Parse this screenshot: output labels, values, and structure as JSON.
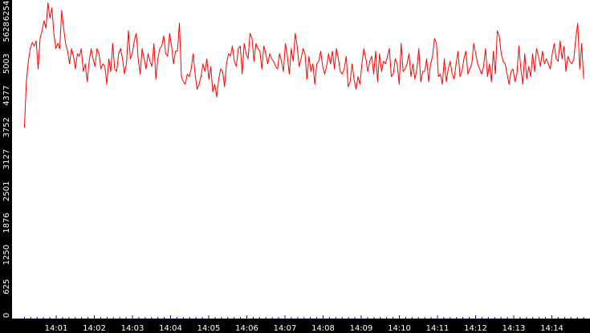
{
  "colors": {
    "background": "#ffffff",
    "axis_band": "#000000",
    "tick_label": "#ffffff",
    "series_line": "#ff0000",
    "minor_tick": "#0000cc"
  },
  "chart_data": {
    "type": "line",
    "title": "",
    "xlabel": "",
    "ylabel": "",
    "grid": false,
    "legend": "none",
    "ylim": [
      0,
      6254
    ],
    "xlim": [
      "14:00:10",
      "14:14:50"
    ],
    "y_ticks": [
      "0",
      "625",
      "1250",
      "1876",
      "2501",
      "3127",
      "3752",
      "4377",
      "5003",
      "5628",
      "6254"
    ],
    "x_ticks": [
      "14:01",
      "14:02",
      "14:03",
      "14:04",
      "14:05",
      "14:06",
      "14:07",
      "14:08",
      "14:09",
      "14:10",
      "14:11",
      "14:12",
      "14:13",
      "14:14"
    ],
    "series": [
      {
        "x_start": "14:00:10",
        "x_end": "14:14:50",
        "values": [
          3750,
          4650,
          5050,
          5300,
          5420,
          5350,
          5450,
          4900,
          5500,
          5650,
          5850,
          5700,
          6200,
          5900,
          6100,
          5600,
          5300,
          5400,
          5300,
          6050,
          5700,
          5400,
          5250,
          5000,
          5300,
          5150,
          4900,
          5200,
          5150,
          5300,
          4850,
          5000,
          4650,
          5050,
          5300,
          5100,
          4950,
          5300,
          5200,
          4900,
          5000,
          4950,
          4600,
          5100,
          4850,
          5400,
          4900,
          4850,
          5200,
          5300,
          5100,
          4800,
          5000,
          5650,
          5100,
          5200,
          5450,
          5600,
          5100,
          4800,
          5300,
          5100,
          4900,
          5200,
          5050,
          4950,
          5400,
          4700,
          5100,
          5300,
          5350,
          5550,
          5200,
          5150,
          5600,
          5350,
          5000,
          5250,
          5250,
          5800,
          4750,
          4650,
          4600,
          4800,
          4750,
          4900,
          5200,
          4800,
          4500,
          4600,
          4750,
          5000,
          4850,
          5100,
          4700,
          4950,
          4450,
          4600,
          4350,
          4700,
          4900,
          4850,
          4550,
          5000,
          5200,
          5150,
          5350,
          5050,
          4950,
          5300,
          5350,
          4800,
          5400,
          5200,
          5100,
          5600,
          5500,
          5050,
          5400,
          5300,
          5250,
          4900,
          5350,
          5200,
          5000,
          5200,
          5100,
          5050,
          4950,
          4900,
          5200,
          5050,
          4850,
          5400,
          5150,
          4800,
          5300,
          5050,
          5600,
          5350,
          4950,
          5100,
          5300,
          5200,
          4700,
          5150,
          4850,
          5000,
          4600,
          5000,
          5050,
          5250,
          4950,
          4800,
          4950,
          5200,
          5000,
          5250,
          4900,
          5300,
          5100,
          4850,
          4800,
          4900,
          5150,
          4550,
          4650,
          5000,
          4700,
          4500,
          4750,
          4600,
          5000,
          5300,
          5100,
          4850,
          5050,
          5150,
          4800,
          5250,
          4650,
          5200,
          4850,
          5050,
          5000,
          5150,
          5300,
          4750,
          4800,
          5100,
          5000,
          4600,
          5400,
          4850,
          4900,
          5000,
          5200,
          4750,
          5000,
          4700,
          4900,
          5300,
          4650,
          4850,
          4850,
          5100,
          4650,
          5000,
          5150,
          5500,
          5400,
          4750,
          4800,
          4600,
          5100,
          4650,
          4900,
          5050,
          4800,
          4700,
          5000,
          5250,
          4750,
          4850,
          5100,
          5250,
          4800,
          4900,
          5000,
          5400,
          5200,
          5000,
          4900,
          4800,
          4950,
          5300,
          4750,
          5000,
          4650,
          5250,
          4800,
          5650,
          5550,
          5200,
          5050,
          5000,
          4800,
          4600,
          4850,
          4900,
          4650,
          4800,
          5350,
          4900,
          4600,
          5200,
          4700,
          4950,
          4750,
          5200,
          4850,
          5300,
          5150,
          4950,
          5250,
          5000,
          5100,
          5000,
          4900,
          5200,
          5400,
          5100,
          5050,
          5450,
          5100,
          5350,
          4850,
          5150,
          5050,
          5000,
          5100,
          5500,
          5800,
          4900,
          5400,
          4700
        ]
      }
    ]
  }
}
